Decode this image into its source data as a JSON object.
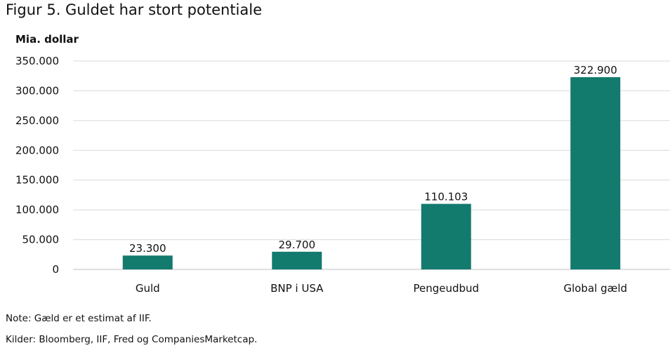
{
  "title": "Figur 5. Guldet har stort potentiale",
  "unit_label": "Mia. dollar",
  "notes": {
    "note": "Note: Gæld er et estimat af IIF.",
    "sources": "Kilder: Bloomberg, IIF, Fred og CompaniesMarketcap."
  },
  "colors": {
    "bar": "#137a6e",
    "grid": "#d9d9d9",
    "axis": "#bfbfbf"
  },
  "chart_data": {
    "type": "bar",
    "categories": [
      "Guld",
      "BNP i USA",
      "Pengeudbud",
      "Global gæld"
    ],
    "values": [
      23300,
      29700,
      110103,
      322900
    ],
    "value_labels": [
      "23.300",
      "29.700",
      "110.103",
      "322.900"
    ],
    "ylim": [
      0,
      350000
    ],
    "yticks": [
      0,
      50000,
      100000,
      150000,
      200000,
      250000,
      300000,
      350000
    ],
    "ytick_labels": [
      "0",
      "50.000",
      "100.000",
      "150.000",
      "200.000",
      "250.000",
      "300.000",
      "350.000"
    ],
    "grid": true,
    "legend": false
  }
}
